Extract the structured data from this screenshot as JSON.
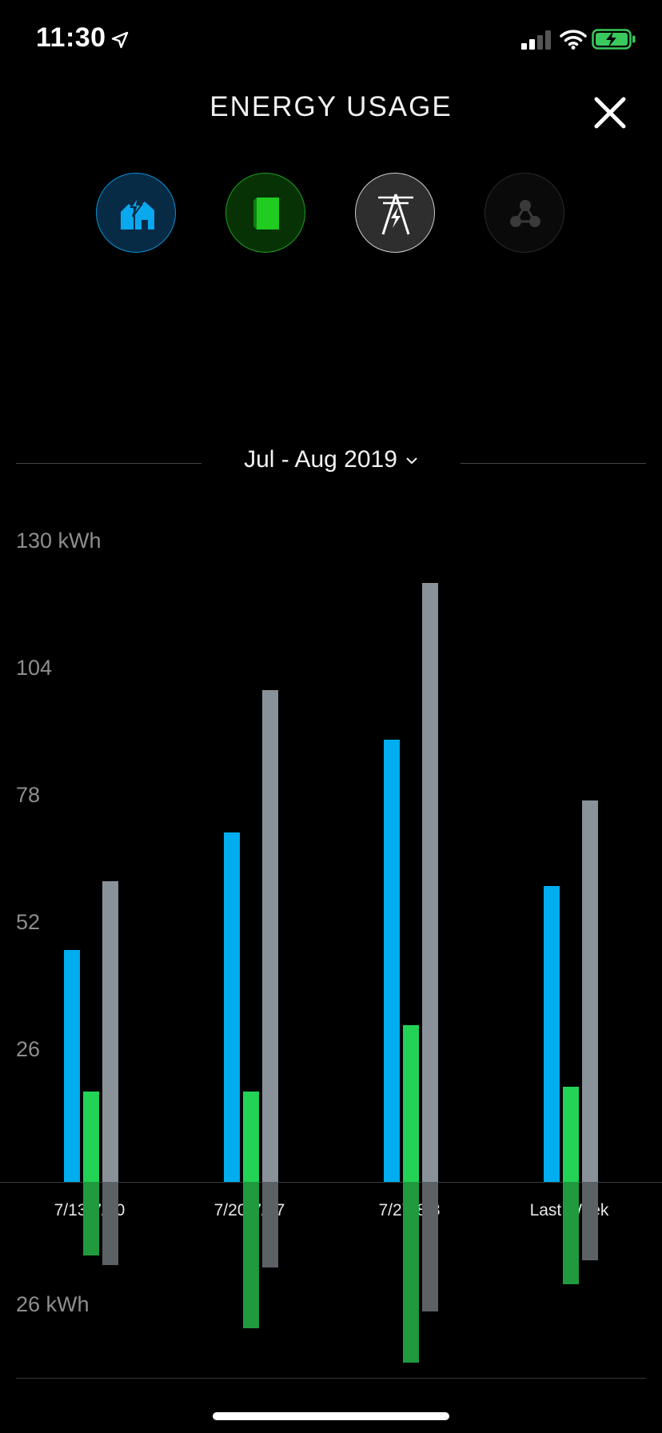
{
  "status_bar": {
    "time": "11:30",
    "icons": [
      "location-arrow-icon",
      "cellular-signal-icon",
      "wifi-icon",
      "battery-charging-icon"
    ]
  },
  "header": {
    "title": "ENERGY USAGE",
    "close_icon": "close-icon"
  },
  "sources": [
    {
      "name": "home",
      "icon": "home-lightning-icon",
      "color": "#0aa8ef"
    },
    {
      "name": "solar",
      "icon": "solar-panel-icon",
      "color": "#20cc20"
    },
    {
      "name": "grid",
      "icon": "power-tower-icon",
      "color": "#d9d9d9"
    },
    {
      "name": "powerwall",
      "icon": "powerwall-icon",
      "color": "#3a3a3a"
    }
  ],
  "period": {
    "label": "Jul - Aug 2019"
  },
  "chart_data": {
    "type": "bar",
    "categories": [
      "7/13-7/20",
      "7/20-7/27",
      "7/27-8/3",
      "Last Week"
    ],
    "y_tick_labels": [
      "130 kWh",
      "104",
      "78",
      "52",
      "26"
    ],
    "y_negative_label": "26 kWh",
    "ylim": [
      -31,
      130
    ],
    "series": [
      {
        "color": "#00adee",
        "values": [
          47.5,
          71.5,
          90.5,
          60.5
        ]
      },
      {
        "color": "#22d355",
        "values": [
          18.5,
          18.5,
          32,
          19.5
        ]
      },
      {
        "color": "#8a9299",
        "values": [
          61.5,
          100.5,
          122.5,
          78
        ]
      }
    ],
    "negative_series": [
      {
        "color": "#1f9a3f",
        "values": [
          15,
          30,
          37,
          21
        ]
      },
      {
        "color": "#5c6166",
        "values": [
          17,
          17.5,
          26.5,
          16
        ]
      }
    ],
    "grid": false,
    "legend": "none"
  }
}
